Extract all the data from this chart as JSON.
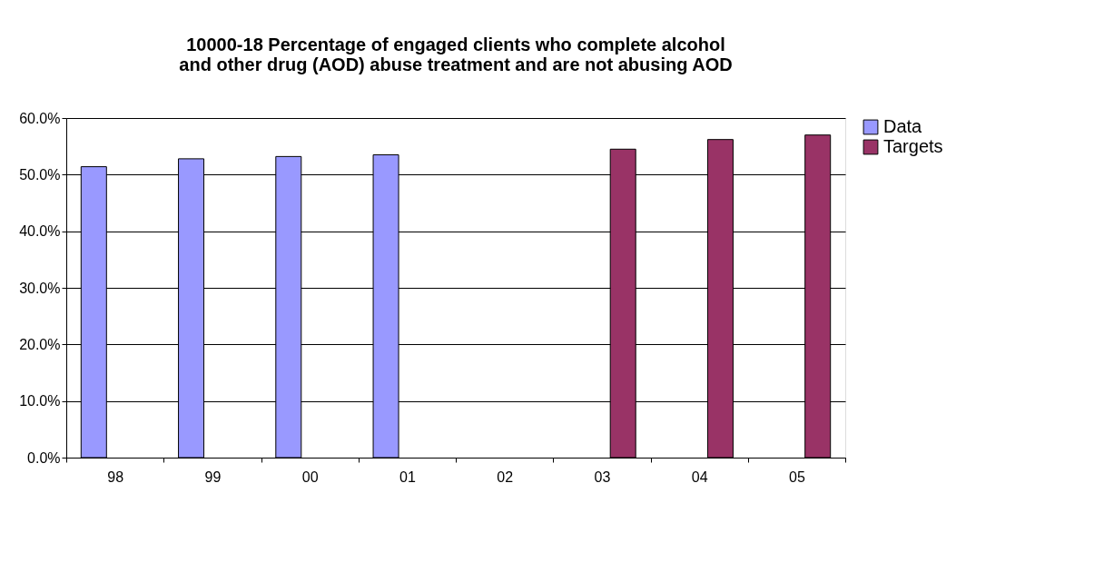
{
  "chart_data": {
    "type": "bar",
    "title": "10000-18  Percentage of engaged clients who complete alcohol and other drug (AOD) abuse treatment and are not abusing AOD",
    "categories": [
      "98",
      "99",
      "00",
      "01",
      "02",
      "03",
      "04",
      "05"
    ],
    "series": [
      {
        "name": "Data",
        "color": "#9999ff",
        "values": [
          51.4,
          52.8,
          53.2,
          53.5,
          null,
          null,
          null,
          null
        ]
      },
      {
        "name": "Targets",
        "color": "#993366",
        "values": [
          null,
          null,
          null,
          null,
          null,
          54.5,
          56.2,
          57.0
        ]
      }
    ],
    "ylim": [
      0,
      60
    ],
    "yticks": [
      {
        "value": 0,
        "label": "0.0%"
      },
      {
        "value": 10,
        "label": "10.0%"
      },
      {
        "value": 20,
        "label": "20.0%"
      },
      {
        "value": 30,
        "label": "30.0%"
      },
      {
        "value": 40,
        "label": "40.0%"
      },
      {
        "value": 50,
        "label": "50.0%"
      },
      {
        "value": 60,
        "label": "60.0%"
      }
    ],
    "grid": "y",
    "legend": "right"
  }
}
